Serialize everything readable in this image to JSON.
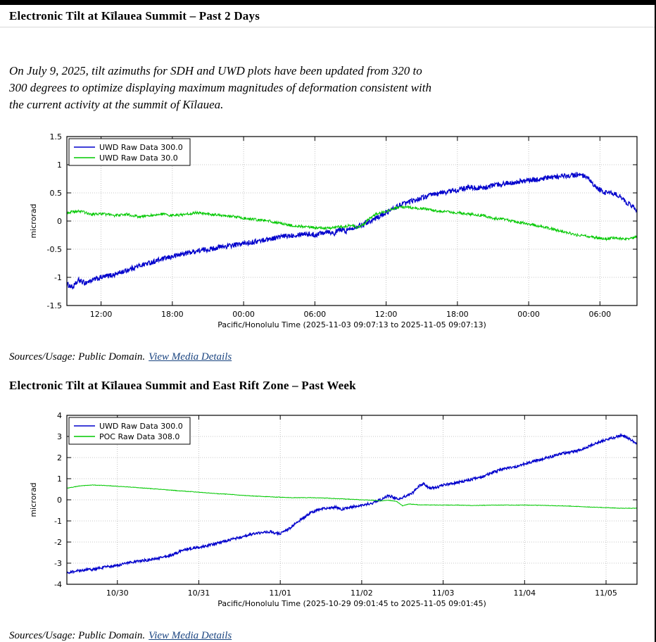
{
  "page": {
    "title_past_2_days": "Electronic Tilt at Kīlauea Summit – Past 2 Days",
    "notice": "On July 9, 2025, tilt azimuths for SDH and UWD plots have been updated from 320 to 300 degrees to optimize displaying maximum magnitudes of deformation consistent with the current activity at the summit of Kīlauea.",
    "title_past_week": "Electronic Tilt at Kīlauea Summit and East Rift Zone – Past Week"
  },
  "caption": {
    "prefix": "Sources/Usage: Public Domain.",
    "link": "View Media Details"
  },
  "colors": {
    "link": "#1a4480",
    "series_blue": "#0000cc",
    "series_green": "#00c800"
  },
  "chart_data": [
    {
      "type": "line",
      "title": "Electronic Tilt at Kīlauea Summit – Past 2 Days",
      "xlabel": "Pacific/Honolulu Time (2025-11-03 09:07:13 to 2025-11-05 09:07:13)",
      "ylabel": "microrad",
      "xlim": [
        0,
        48
      ],
      "ylim": [
        -1.5,
        1.5
      ],
      "grid": true,
      "legend_position": "top-left",
      "xticks": [
        2.88,
        8.88,
        14.88,
        20.88,
        26.88,
        32.88,
        38.88,
        44.88
      ],
      "xtick_labels": [
        "12:00",
        "18:00",
        "00:00",
        "06:00",
        "12:00",
        "18:00",
        "00:00",
        "06:00"
      ],
      "yticks": [
        -1.5,
        -1,
        -0.5,
        0,
        0.5,
        1,
        1.5
      ],
      "ytick_labels": [
        "-1.5",
        "-1",
        "-0.5",
        "0",
        "0.5",
        "1",
        "1.5"
      ],
      "legend": [
        "UWD Raw Data 300.0",
        "UWD Raw Data 30.0"
      ],
      "series": [
        {
          "name": "UWD Raw Data 300.0",
          "color": "#0000cc",
          "noise": 0.045,
          "x": [
            0,
            0.5,
            1,
            1.5,
            2,
            2.9,
            4,
            5,
            6,
            7,
            8,
            8.9,
            10,
            11,
            12,
            13,
            14,
            14.9,
            16,
            17,
            18,
            19,
            20,
            20.9,
            21.5,
            22,
            22.5,
            23,
            23.5,
            24,
            25,
            26,
            26.9,
            28,
            29,
            30,
            31,
            32,
            32.9,
            34,
            35,
            36,
            37,
            38,
            38.9,
            40,
            41,
            42,
            43,
            43.5,
            44,
            44.5,
            44.9,
            45.3,
            45.7,
            46,
            46.5,
            47,
            47.5,
            48
          ],
          "y": [
            -1.12,
            -1.18,
            -1.05,
            -1.1,
            -1.06,
            -1.0,
            -0.95,
            -0.88,
            -0.8,
            -0.74,
            -0.68,
            -0.63,
            -0.57,
            -0.53,
            -0.5,
            -0.46,
            -0.43,
            -0.4,
            -0.36,
            -0.32,
            -0.28,
            -0.25,
            -0.22,
            -0.25,
            -0.2,
            -0.18,
            -0.22,
            -0.15,
            -0.18,
            -0.12,
            -0.05,
            0.05,
            0.15,
            0.28,
            0.35,
            0.42,
            0.48,
            0.52,
            0.55,
            0.6,
            0.58,
            0.64,
            0.67,
            0.7,
            0.72,
            0.75,
            0.78,
            0.8,
            0.82,
            0.8,
            0.72,
            0.6,
            0.55,
            0.5,
            0.52,
            0.48,
            0.45,
            0.35,
            0.28,
            0.18
          ]
        },
        {
          "name": "UWD Raw Data 30.0",
          "color": "#00c800",
          "noise": 0.025,
          "x": [
            0,
            1,
            2,
            2.9,
            4,
            5,
            6,
            7,
            8,
            8.9,
            10,
            11,
            12,
            13,
            14,
            14.9,
            16,
            17,
            18,
            19,
            20,
            20.9,
            22,
            23,
            24,
            24.5,
            25,
            25.5,
            26,
            26.9,
            27.5,
            28,
            29,
            30,
            31,
            32,
            32.9,
            34,
            35,
            36,
            37,
            38,
            38.9,
            40,
            41,
            42,
            43,
            44,
            44.9,
            45.5,
            46,
            47,
            48
          ],
          "y": [
            0.15,
            0.18,
            0.12,
            0.13,
            0.1,
            0.12,
            0.08,
            0.1,
            0.12,
            0.1,
            0.12,
            0.15,
            0.12,
            0.1,
            0.08,
            0.05,
            0.02,
            0.0,
            -0.04,
            -0.08,
            -0.1,
            -0.12,
            -0.13,
            -0.1,
            -0.08,
            -0.12,
            -0.05,
            0.05,
            0.12,
            0.18,
            0.22,
            0.25,
            0.24,
            0.22,
            0.18,
            0.16,
            0.15,
            0.12,
            0.1,
            0.05,
            0.02,
            -0.02,
            -0.05,
            -0.1,
            -0.15,
            -0.2,
            -0.25,
            -0.28,
            -0.3,
            -0.32,
            -0.3,
            -0.32,
            -0.28
          ]
        }
      ]
    },
    {
      "type": "line",
      "title": "Electronic Tilt at Kīlauea Summit and East Rift Zone – Past Week",
      "xlabel": "Pacific/Honolulu Time (2025-10-29 09:01:45 to 2025-11-05 09:01:45)",
      "ylabel": "microrad",
      "xlim": [
        0,
        7
      ],
      "ylim": [
        -4,
        4
      ],
      "grid": true,
      "legend_position": "top-left",
      "xticks": [
        0.62,
        1.62,
        2.62,
        3.62,
        4.62,
        5.62,
        6.62
      ],
      "xtick_labels": [
        "10/30",
        "10/31",
        "11/01",
        "11/02",
        "11/03",
        "11/04",
        "11/05"
      ],
      "yticks": [
        -4,
        -3,
        -2,
        -1,
        0,
        1,
        2,
        3,
        4
      ],
      "ytick_labels": [
        "-4",
        "-3",
        "-2",
        "-1",
        "0",
        "1",
        "2",
        "3",
        "4"
      ],
      "legend": [
        "UWD Raw Data 300.0",
        "POC Raw Data 308.0"
      ],
      "series": [
        {
          "name": "UWD Raw Data 300.0",
          "color": "#0000cc",
          "noise": 0.06,
          "x": [
            0,
            0.15,
            0.3,
            0.45,
            0.62,
            0.8,
            1.0,
            1.15,
            1.3,
            1.45,
            1.62,
            1.8,
            1.95,
            2.1,
            2.25,
            2.4,
            2.5,
            2.56,
            2.62,
            2.72,
            2.85,
            3.0,
            3.1,
            3.2,
            3.3,
            3.38,
            3.48,
            3.62,
            3.75,
            3.88,
            3.95,
            4.02,
            4.08,
            4.15,
            4.25,
            4.32,
            4.38,
            4.45,
            4.55,
            4.62,
            4.75,
            4.9,
            5.0,
            5.1,
            5.2,
            5.3,
            5.4,
            5.5,
            5.62,
            5.75,
            5.9,
            6.0,
            6.08,
            6.18,
            6.3,
            6.42,
            6.55,
            6.62,
            6.72,
            6.8,
            6.86,
            6.92,
            7.0
          ],
          "y": [
            -3.45,
            -3.35,
            -3.3,
            -3.2,
            -3.1,
            -2.95,
            -2.85,
            -2.75,
            -2.6,
            -2.35,
            -2.25,
            -2.1,
            -1.95,
            -1.8,
            -1.65,
            -1.55,
            -1.5,
            -1.58,
            -1.6,
            -1.4,
            -1.0,
            -0.6,
            -0.45,
            -0.4,
            -0.35,
            -0.45,
            -0.35,
            -0.25,
            -0.15,
            0.05,
            0.2,
            0.1,
            0.05,
            0.15,
            0.35,
            0.65,
            0.75,
            0.55,
            0.6,
            0.7,
            0.78,
            0.9,
            1.0,
            1.1,
            1.25,
            1.4,
            1.5,
            1.55,
            1.7,
            1.85,
            2.0,
            2.1,
            2.2,
            2.25,
            2.35,
            2.55,
            2.75,
            2.85,
            2.95,
            3.05,
            3.0,
            2.85,
            2.65
          ]
        },
        {
          "name": "POC Raw Data 308.0",
          "color": "#00c800",
          "noise": 0.012,
          "x": [
            0,
            0.15,
            0.3,
            0.45,
            0.62,
            0.8,
            1.0,
            1.2,
            1.4,
            1.62,
            1.8,
            2.0,
            2.2,
            2.4,
            2.62,
            2.8,
            3.0,
            3.2,
            3.4,
            3.62,
            3.75,
            3.85,
            3.95,
            4.05,
            4.12,
            4.2,
            4.35,
            4.62,
            4.8,
            5.0,
            5.2,
            5.4,
            5.62,
            5.8,
            6.0,
            6.2,
            6.4,
            6.62,
            6.8,
            7.0
          ],
          "y": [
            0.55,
            0.65,
            0.7,
            0.68,
            0.64,
            0.6,
            0.54,
            0.48,
            0.42,
            0.36,
            0.3,
            0.26,
            0.2,
            0.16,
            0.12,
            0.1,
            0.1,
            0.08,
            0.04,
            0.0,
            -0.02,
            -0.05,
            -0.02,
            -0.08,
            -0.28,
            -0.2,
            -0.24,
            -0.25,
            -0.25,
            -0.27,
            -0.25,
            -0.25,
            -0.25,
            -0.26,
            -0.28,
            -0.3,
            -0.34,
            -0.37,
            -0.4,
            -0.4
          ]
        }
      ]
    }
  ]
}
